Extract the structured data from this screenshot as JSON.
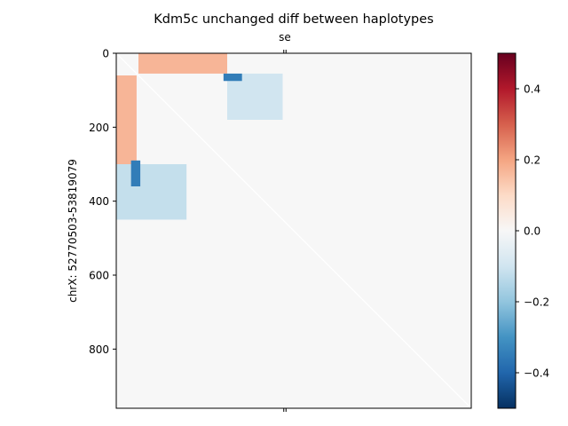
{
  "chart_data": {
    "type": "heatmap",
    "title": "Kdm5c unchanged diff between haplotypes",
    "ylabel": "chrX: 52770503-53819079",
    "top_tick_label": "se",
    "y_ticks": [
      0,
      200,
      400,
      600,
      800
    ],
    "x_range": [
      0,
      960
    ],
    "y_range": [
      0,
      960
    ],
    "colormap": "RdBu_r",
    "colorbar": {
      "range": [
        -0.5,
        0.5
      ],
      "ticks": [
        -0.4,
        -0.2,
        0.0,
        0.2,
        0.4
      ],
      "tick_labels": [
        "−0.4",
        "−0.2",
        "0.0",
        "0.2",
        "0.4"
      ]
    },
    "background_value": 0.0,
    "patches": [
      {
        "name": "top-stripe-positive",
        "rows": [
          0,
          55
        ],
        "cols": [
          60,
          300
        ],
        "value": 0.17
      },
      {
        "name": "row-stripe-negative",
        "rows": [
          55,
          180
        ],
        "cols": [
          300,
          450
        ],
        "value": -0.1
      },
      {
        "name": "row-stripe-negative-dark",
        "rows": [
          55,
          75
        ],
        "cols": [
          290,
          340
        ],
        "value": -0.35
      },
      {
        "name": "left-stripe-positive",
        "rows": [
          60,
          300
        ],
        "cols": [
          0,
          55
        ],
        "value": 0.17
      },
      {
        "name": "col-stripe-negative",
        "rows": [
          300,
          450
        ],
        "cols": [
          0,
          190
        ],
        "value": -0.12
      },
      {
        "name": "col-stripe-negative-dark",
        "rows": [
          290,
          360
        ],
        "cols": [
          40,
          65
        ],
        "value": -0.35
      }
    ]
  }
}
